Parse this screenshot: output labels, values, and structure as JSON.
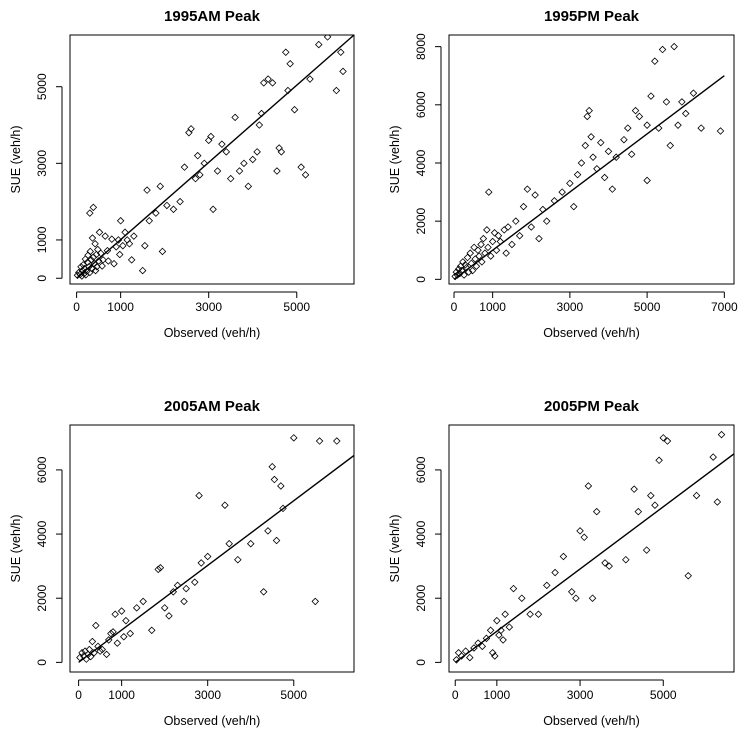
{
  "chart_data": [
    {
      "type": "scatter",
      "title": "1995AM Peak",
      "xlabel": "Observed (veh/h)",
      "ylabel": "SUE (veh/h)",
      "xlim": [
        -150,
        6300
      ],
      "ylim": [
        -150,
        6350
      ],
      "xticks": [
        0,
        1000,
        3000,
        5000
      ],
      "yticks": [
        0,
        1000,
        3000,
        5000
      ],
      "fit_line": {
        "x": [
          0,
          6300
        ],
        "y": [
          0,
          6350
        ]
      },
      "points": [
        [
          20,
          80
        ],
        [
          50,
          150
        ],
        [
          80,
          100
        ],
        [
          100,
          300
        ],
        [
          120,
          60
        ],
        [
          130,
          200
        ],
        [
          150,
          350
        ],
        [
          170,
          120
        ],
        [
          180,
          250
        ],
        [
          200,
          500
        ],
        [
          210,
          90
        ],
        [
          230,
          180
        ],
        [
          250,
          420
        ],
        [
          260,
          600
        ],
        [
          280,
          300
        ],
        [
          300,
          150
        ],
        [
          310,
          700
        ],
        [
          330,
          480
        ],
        [
          350,
          250
        ],
        [
          360,
          1050
        ],
        [
          380,
          550
        ],
        [
          400,
          380
        ],
        [
          420,
          900
        ],
        [
          430,
          200
        ],
        [
          450,
          620
        ],
        [
          460,
          300
        ],
        [
          480,
          750
        ],
        [
          500,
          450
        ],
        [
          520,
          1200
        ],
        [
          300,
          1700
        ],
        [
          380,
          1850
        ],
        [
          550,
          650
        ],
        [
          580,
          320
        ],
        [
          600,
          480
        ],
        [
          650,
          1100
        ],
        [
          700,
          720
        ],
        [
          720,
          450
        ],
        [
          800,
          1020
        ],
        [
          850,
          380
        ],
        [
          900,
          820
        ],
        [
          950,
          1000
        ],
        [
          980,
          620
        ],
        [
          1000,
          1500
        ],
        [
          1050,
          850
        ],
        [
          1100,
          1200
        ],
        [
          1150,
          1000
        ],
        [
          1200,
          900
        ],
        [
          1250,
          480
        ],
        [
          1300,
          1100
        ],
        [
          1500,
          200
        ],
        [
          1550,
          850
        ],
        [
          1600,
          2300
        ],
        [
          1650,
          1500
        ],
        [
          1800,
          1700
        ],
        [
          1900,
          2400
        ],
        [
          1950,
          700
        ],
        [
          2050,
          1900
        ],
        [
          2200,
          1800
        ],
        [
          2350,
          2000
        ],
        [
          2450,
          2900
        ],
        [
          2550,
          3800
        ],
        [
          2600,
          3900
        ],
        [
          2700,
          2600
        ],
        [
          2750,
          3200
        ],
        [
          2800,
          2700
        ],
        [
          2900,
          3000
        ],
        [
          3000,
          3600
        ],
        [
          3050,
          3700
        ],
        [
          3100,
          1800
        ],
        [
          3200,
          2800
        ],
        [
          3300,
          3500
        ],
        [
          3400,
          3300
        ],
        [
          3500,
          2600
        ],
        [
          3600,
          4200
        ],
        [
          3700,
          2800
        ],
        [
          3800,
          3000
        ],
        [
          3900,
          2400
        ],
        [
          4000,
          3100
        ],
        [
          4100,
          3300
        ],
        [
          4150,
          4000
        ],
        [
          4200,
          4300
        ],
        [
          4250,
          5100
        ],
        [
          4350,
          5200
        ],
        [
          4450,
          5100
        ],
        [
          4550,
          2800
        ],
        [
          4600,
          3400
        ],
        [
          4650,
          3300
        ],
        [
          4750,
          5900
        ],
        [
          4800,
          4900
        ],
        [
          4850,
          5600
        ],
        [
          4950,
          4400
        ],
        [
          5100,
          2900
        ],
        [
          5200,
          2700
        ],
        [
          5300,
          5200
        ],
        [
          5500,
          6100
        ],
        [
          5700,
          6300
        ],
        [
          5900,
          4900
        ],
        [
          6000,
          5900
        ],
        [
          6050,
          5400
        ]
      ]
    },
    {
      "type": "scatter",
      "title": "1995PM Peak",
      "xlabel": "Observed (veh/h)",
      "ylabel": "SUE (veh/h)",
      "xlim": [
        -130,
        7250
      ],
      "ylim": [
        -160,
        8400
      ],
      "xticks": [
        0,
        1000,
        3000,
        5000,
        7000
      ],
      "yticks": [
        0,
        2000,
        4000,
        6000,
        8000
      ],
      "fit_line": {
        "x": [
          0,
          7000
        ],
        "y": [
          0,
          7000
        ]
      },
      "points": [
        [
          30,
          100
        ],
        [
          60,
          250
        ],
        [
          90,
          150
        ],
        [
          120,
          350
        ],
        [
          150,
          200
        ],
        [
          170,
          450
        ],
        [
          200,
          300
        ],
        [
          230,
          600
        ],
        [
          260,
          150
        ],
        [
          290,
          500
        ],
        [
          320,
          400
        ],
        [
          350,
          750
        ],
        [
          380,
          250
        ],
        [
          420,
          900
        ],
        [
          450,
          550
        ],
        [
          480,
          300
        ],
        [
          520,
          1100
        ],
        [
          550,
          700
        ],
        [
          580,
          450
        ],
        [
          620,
          1000
        ],
        [
          650,
          800
        ],
        [
          700,
          1200
        ],
        [
          720,
          600
        ],
        [
          760,
          1400
        ],
        [
          800,
          900
        ],
        [
          850,
          1700
        ],
        [
          880,
          1100
        ],
        [
          900,
          3000
        ],
        [
          950,
          800
        ],
        [
          1000,
          1300
        ],
        [
          1050,
          1600
        ],
        [
          1100,
          1000
        ],
        [
          1150,
          1500
        ],
        [
          1200,
          1300
        ],
        [
          1300,
          1700
        ],
        [
          1350,
          900
        ],
        [
          1400,
          1800
        ],
        [
          1500,
          1200
        ],
        [
          1600,
          2000
        ],
        [
          1700,
          1500
        ],
        [
          1800,
          2500
        ],
        [
          1900,
          3100
        ],
        [
          2000,
          1800
        ],
        [
          2100,
          2900
        ],
        [
          2200,
          1400
        ],
        [
          2300,
          2400
        ],
        [
          2400,
          2000
        ],
        [
          2600,
          2700
        ],
        [
          2800,
          3000
        ],
        [
          3000,
          3300
        ],
        [
          3100,
          2500
        ],
        [
          3200,
          3600
        ],
        [
          3300,
          4000
        ],
        [
          3400,
          4600
        ],
        [
          3450,
          5600
        ],
        [
          3500,
          5800
        ],
        [
          3550,
          4900
        ],
        [
          3600,
          4200
        ],
        [
          3700,
          3800
        ],
        [
          3800,
          4700
        ],
        [
          3900,
          3500
        ],
        [
          4000,
          4400
        ],
        [
          4100,
          3100
        ],
        [
          4200,
          4200
        ],
        [
          4400,
          4800
        ],
        [
          4500,
          5200
        ],
        [
          4600,
          4300
        ],
        [
          4700,
          5800
        ],
        [
          4800,
          5600
        ],
        [
          5000,
          3400
        ],
        [
          5100,
          6300
        ],
        [
          5200,
          7500
        ],
        [
          5300,
          5200
        ],
        [
          5400,
          7900
        ],
        [
          5500,
          6100
        ],
        [
          5600,
          4600
        ],
        [
          5700,
          8000
        ],
        [
          5800,
          5300
        ],
        [
          5900,
          6100
        ],
        [
          6000,
          5700
        ],
        [
          6200,
          6400
        ],
        [
          6400,
          5200
        ],
        [
          6900,
          5100
        ],
        [
          5000,
          5300
        ]
      ]
    },
    {
      "type": "scatter",
      "title": "2005AM Peak",
      "xlabel": "Observed (veh/h)",
      "ylabel": "SUE (veh/h)",
      "xlim": [
        -200,
        6400
      ],
      "ylim": [
        -300,
        7400
      ],
      "xticks": [
        0,
        1000,
        3000,
        5000
      ],
      "yticks": [
        0,
        2000,
        4000,
        6000
      ],
      "fit_line": {
        "x": [
          0,
          6400
        ],
        "y": [
          0,
          6450
        ]
      },
      "points": [
        [
          30,
          150
        ],
        [
          80,
          300
        ],
        [
          120,
          200
        ],
        [
          150,
          350
        ],
        [
          180,
          100
        ],
        [
          220,
          250
        ],
        [
          250,
          400
        ],
        [
          280,
          180
        ],
        [
          320,
          650
        ],
        [
          360,
          300
        ],
        [
          400,
          1150
        ],
        [
          450,
          500
        ],
        [
          500,
          350
        ],
        [
          550,
          400
        ],
        [
          650,
          250
        ],
        [
          700,
          700
        ],
        [
          750,
          900
        ],
        [
          800,
          950
        ],
        [
          850,
          1500
        ],
        [
          900,
          600
        ],
        [
          1000,
          1600
        ],
        [
          1050,
          800
        ],
        [
          1100,
          1300
        ],
        [
          1200,
          900
        ],
        [
          1350,
          1700
        ],
        [
          1500,
          1900
        ],
        [
          1700,
          1000
        ],
        [
          1850,
          2900
        ],
        [
          1900,
          2950
        ],
        [
          2000,
          1700
        ],
        [
          2100,
          1450
        ],
        [
          2200,
          2200
        ],
        [
          2300,
          2400
        ],
        [
          2450,
          1900
        ],
        [
          2500,
          2300
        ],
        [
          2700,
          2500
        ],
        [
          2800,
          5200
        ],
        [
          2850,
          3100
        ],
        [
          3000,
          3300
        ],
        [
          3400,
          4900
        ],
        [
          3500,
          3700
        ],
        [
          3700,
          3200
        ],
        [
          4000,
          3700
        ],
        [
          4300,
          2200
        ],
        [
          4400,
          4100
        ],
        [
          4500,
          6100
        ],
        [
          4550,
          5700
        ],
        [
          4600,
          3800
        ],
        [
          4700,
          5500
        ],
        [
          4750,
          4800
        ],
        [
          5000,
          7000
        ],
        [
          5500,
          1900
        ],
        [
          5600,
          6900
        ],
        [
          6000,
          6900
        ]
      ]
    },
    {
      "type": "scatter",
      "title": "2005PM Peak",
      "xlabel": "Observed (veh/h)",
      "ylabel": "SUE (veh/h)",
      "xlim": [
        -150,
        6700
      ],
      "ylim": [
        -300,
        7400
      ],
      "xticks": [
        0,
        1000,
        3000,
        5000
      ],
      "yticks": [
        0,
        2000,
        4000,
        6000
      ],
      "fit_line": {
        "x": [
          0,
          6700
        ],
        "y": [
          0,
          6500
        ]
      },
      "points": [
        [
          30,
          80
        ],
        [
          80,
          300
        ],
        [
          150,
          200
        ],
        [
          250,
          350
        ],
        [
          350,
          150
        ],
        [
          450,
          450
        ],
        [
          550,
          600
        ],
        [
          650,
          500
        ],
        [
          750,
          750
        ],
        [
          850,
          1000
        ],
        [
          900,
          300
        ],
        [
          950,
          200
        ],
        [
          1000,
          1300
        ],
        [
          1050,
          850
        ],
        [
          1100,
          1000
        ],
        [
          1150,
          700
        ],
        [
          1200,
          1500
        ],
        [
          1300,
          1100
        ],
        [
          1400,
          2300
        ],
        [
          1600,
          2000
        ],
        [
          1800,
          1500
        ],
        [
          2000,
          1500
        ],
        [
          2200,
          2400
        ],
        [
          2400,
          2800
        ],
        [
          2600,
          3300
        ],
        [
          2800,
          2200
        ],
        [
          2900,
          2000
        ],
        [
          3000,
          4100
        ],
        [
          3100,
          3900
        ],
        [
          3200,
          5500
        ],
        [
          3300,
          2000
        ],
        [
          3400,
          4700
        ],
        [
          3600,
          3100
        ],
        [
          3700,
          3000
        ],
        [
          4100,
          3200
        ],
        [
          4300,
          5400
        ],
        [
          4400,
          4700
        ],
        [
          4600,
          3500
        ],
        [
          4800,
          4900
        ],
        [
          4900,
          6300
        ],
        [
          5000,
          7000
        ],
        [
          5100,
          6900
        ],
        [
          5600,
          2700
        ],
        [
          5800,
          5200
        ],
        [
          6200,
          6400
        ],
        [
          6400,
          7100
        ],
        [
          6300,
          5000
        ],
        [
          4700,
          5200
        ]
      ]
    }
  ]
}
